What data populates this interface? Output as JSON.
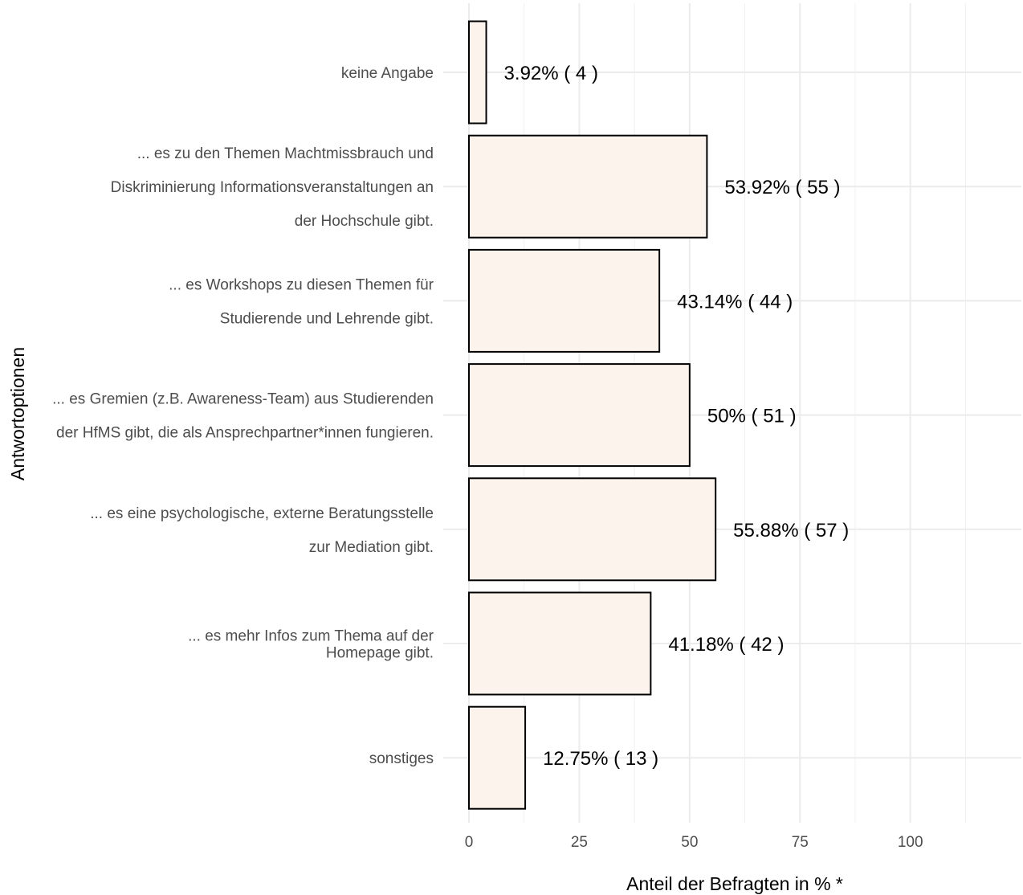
{
  "chart_data": {
    "type": "bar",
    "orientation": "horizontal",
    "xlabel": "Anteil der Befragten in % *",
    "ylabel": "Antwortoptionen",
    "xlim": [
      0,
      125
    ],
    "x_ticks": [
      0,
      25,
      50,
      75,
      100
    ],
    "grid": true,
    "legend": "none",
    "bar_fill": "#fbf3ec",
    "bar_stroke": "#000000",
    "categories": [
      {
        "lines": [
          "keine Angabe"
        ],
        "value": 3.92,
        "label": "3.92% ( 4 )"
      },
      {
        "lines": [
          "... es zu den Themen Machtmissbrauch und",
          "Diskriminierung Informationsveranstaltungen an",
          "der Hochschule gibt."
        ],
        "value": 53.92,
        "label": "53.92% ( 55 )"
      },
      {
        "lines": [
          "... es Workshops zu diesen Themen für",
          "Studierende und Lehrende gibt."
        ],
        "value": 43.14,
        "label": "43.14% ( 44 )"
      },
      {
        "lines": [
          "... es Gremien (z.B. Awareness-Team) aus Studierenden",
          "der HfMS gibt, die als Ansprechpartner*innen fungieren."
        ],
        "value": 50,
        "label": "50% ( 51 )"
      },
      {
        "lines": [
          "... es eine psychologische, externe Beratungsstelle",
          "zur Mediation gibt."
        ],
        "value": 55.88,
        "label": "55.88% ( 57 )"
      },
      {
        "lines": [
          "... es mehr Infos zum Thema auf der",
          "Homepage gibt."
        ],
        "value": 41.18,
        "label": "41.18% ( 42 )"
      },
      {
        "lines": [
          "sonstiges"
        ],
        "value": 12.75,
        "label": "12.75% ( 13 )"
      }
    ]
  }
}
